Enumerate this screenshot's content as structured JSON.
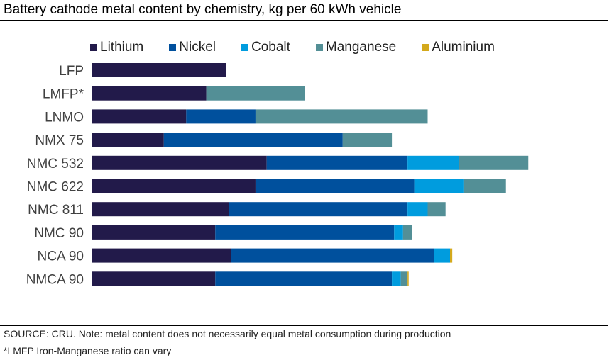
{
  "chart_data": {
    "type": "bar",
    "orientation": "horizontal",
    "stacked": true,
    "title": "Battery cathode metal content by chemistry, kg per 60 kWh vehicle",
    "xlabel": "",
    "ylabel": "",
    "grid": false,
    "legend_position": "top",
    "categories": [
      "LFP",
      "LMFP*",
      "LNMO",
      "NMX 75",
      "NMC 532",
      "NMC 622",
      "NMC 811",
      "NMC 90",
      "NCA 90",
      "NMCA 90"
    ],
    "series": [
      {
        "name": "Lithium",
        "color": "#221a4a",
        "values": [
          6.0,
          5.1,
          4.2,
          3.2,
          7.8,
          7.3,
          6.1,
          5.5,
          6.2,
          5.5
        ]
      },
      {
        "name": "Nickel",
        "color": "#00509d",
        "values": [
          0,
          0,
          3.1,
          8.0,
          6.3,
          7.1,
          8.0,
          8.0,
          9.1,
          7.9
        ]
      },
      {
        "name": "Cobalt",
        "color": "#009cde",
        "values": [
          0,
          0,
          0,
          0,
          2.3,
          2.2,
          0.9,
          0.4,
          0.7,
          0.4
        ]
      },
      {
        "name": "Manganese",
        "color": "#538f96",
        "values": [
          0,
          4.4,
          7.7,
          2.2,
          3.1,
          1.9,
          0.8,
          0.4,
          0,
          0.3
        ]
      },
      {
        "name": "Aluminium",
        "color": "#d4a91c",
        "values": [
          0,
          0,
          0,
          0,
          0,
          0,
          0,
          0,
          0.1,
          0.05
        ]
      }
    ]
  },
  "notes": {
    "source": "SOURCE: CRU. Note: metal content does not necessarily equal metal consumption during production",
    "footnote": "*LMFP Iron-Manganese ratio can vary"
  }
}
